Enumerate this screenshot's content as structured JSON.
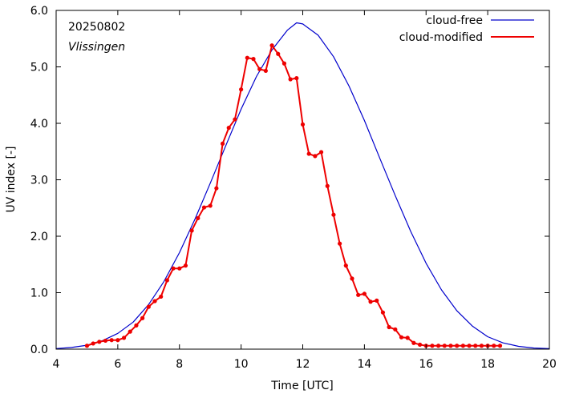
{
  "chart_data": {
    "type": "line",
    "date_label": "20250802",
    "location_label": "Vlissingen",
    "xlabel": "Time  [UTC]",
    "ylabel": "UV index  [-]",
    "xlim": [
      4,
      20
    ],
    "ylim": [
      0,
      6
    ],
    "xticks": [
      4,
      6,
      8,
      10,
      12,
      14,
      16,
      18,
      20
    ],
    "yticks": [
      0,
      1,
      2,
      3,
      4,
      5,
      6
    ],
    "ytick_labels": [
      "0.0",
      "1.0",
      "2.0",
      "3.0",
      "4.0",
      "5.0",
      "6.0"
    ],
    "grid": false,
    "legend_position": "top-right",
    "series": [
      {
        "name": "cloud-free",
        "color": "#0000cc",
        "style": "line",
        "x": [
          4.0,
          4.5,
          5.0,
          5.5,
          6.0,
          6.5,
          7.0,
          7.5,
          8.0,
          8.5,
          9.0,
          9.5,
          10.0,
          10.5,
          11.0,
          11.5,
          11.8,
          12.0,
          12.5,
          13.0,
          13.5,
          14.0,
          14.5,
          15.0,
          15.5,
          16.0,
          16.5,
          17.0,
          17.5,
          18.0,
          18.5,
          19.0,
          19.5,
          20.0
        ],
        "y": [
          0.01,
          0.03,
          0.07,
          0.15,
          0.28,
          0.48,
          0.79,
          1.2,
          1.71,
          2.3,
          2.94,
          3.6,
          4.25,
          4.83,
          5.3,
          5.65,
          5.78,
          5.76,
          5.56,
          5.18,
          4.66,
          4.05,
          3.38,
          2.72,
          2.09,
          1.52,
          1.05,
          0.68,
          0.41,
          0.22,
          0.11,
          0.05,
          0.02,
          0.01
        ]
      },
      {
        "name": "cloud-modified",
        "color": "#ee0000",
        "style": "line-points",
        "x": [
          5.0,
          5.2,
          5.4,
          5.6,
          5.8,
          6.0,
          6.2,
          6.4,
          6.6,
          6.8,
          7.0,
          7.2,
          7.4,
          7.6,
          7.8,
          8.0,
          8.2,
          8.4,
          8.6,
          8.8,
          9.0,
          9.2,
          9.4,
          9.6,
          9.8,
          10.0,
          10.2,
          10.4,
          10.6,
          10.8,
          11.0,
          11.2,
          11.4,
          11.6,
          11.8,
          12.0,
          12.2,
          12.4,
          12.6,
          12.8,
          13.0,
          13.2,
          13.4,
          13.6,
          13.8,
          14.0,
          14.2,
          14.4,
          14.6,
          14.8,
          15.0,
          15.2,
          15.4,
          15.6,
          15.8,
          16.0,
          16.2,
          16.4,
          16.6,
          16.8,
          17.0,
          17.2,
          17.4,
          17.6,
          17.8,
          18.0,
          18.2,
          18.4
        ],
        "y": [
          0.06,
          0.1,
          0.13,
          0.15,
          0.16,
          0.16,
          0.2,
          0.31,
          0.42,
          0.55,
          0.75,
          0.85,
          0.93,
          1.22,
          1.43,
          1.43,
          1.48,
          2.1,
          2.32,
          2.51,
          2.54,
          2.85,
          3.64,
          3.92,
          4.07,
          4.6,
          5.16,
          5.14,
          4.96,
          4.93,
          5.38,
          5.23,
          5.06,
          4.78,
          4.8,
          3.98,
          3.46,
          3.42,
          3.49,
          2.89,
          2.38,
          1.87,
          1.48,
          1.25,
          0.96,
          0.98,
          0.84,
          0.86,
          0.65,
          0.39,
          0.35,
          0.21,
          0.2,
          0.11,
          0.08,
          0.06,
          0.06,
          0.06,
          0.06,
          0.06,
          0.06,
          0.06,
          0.06,
          0.06,
          0.06,
          0.06,
          0.06,
          0.06
        ]
      }
    ]
  }
}
